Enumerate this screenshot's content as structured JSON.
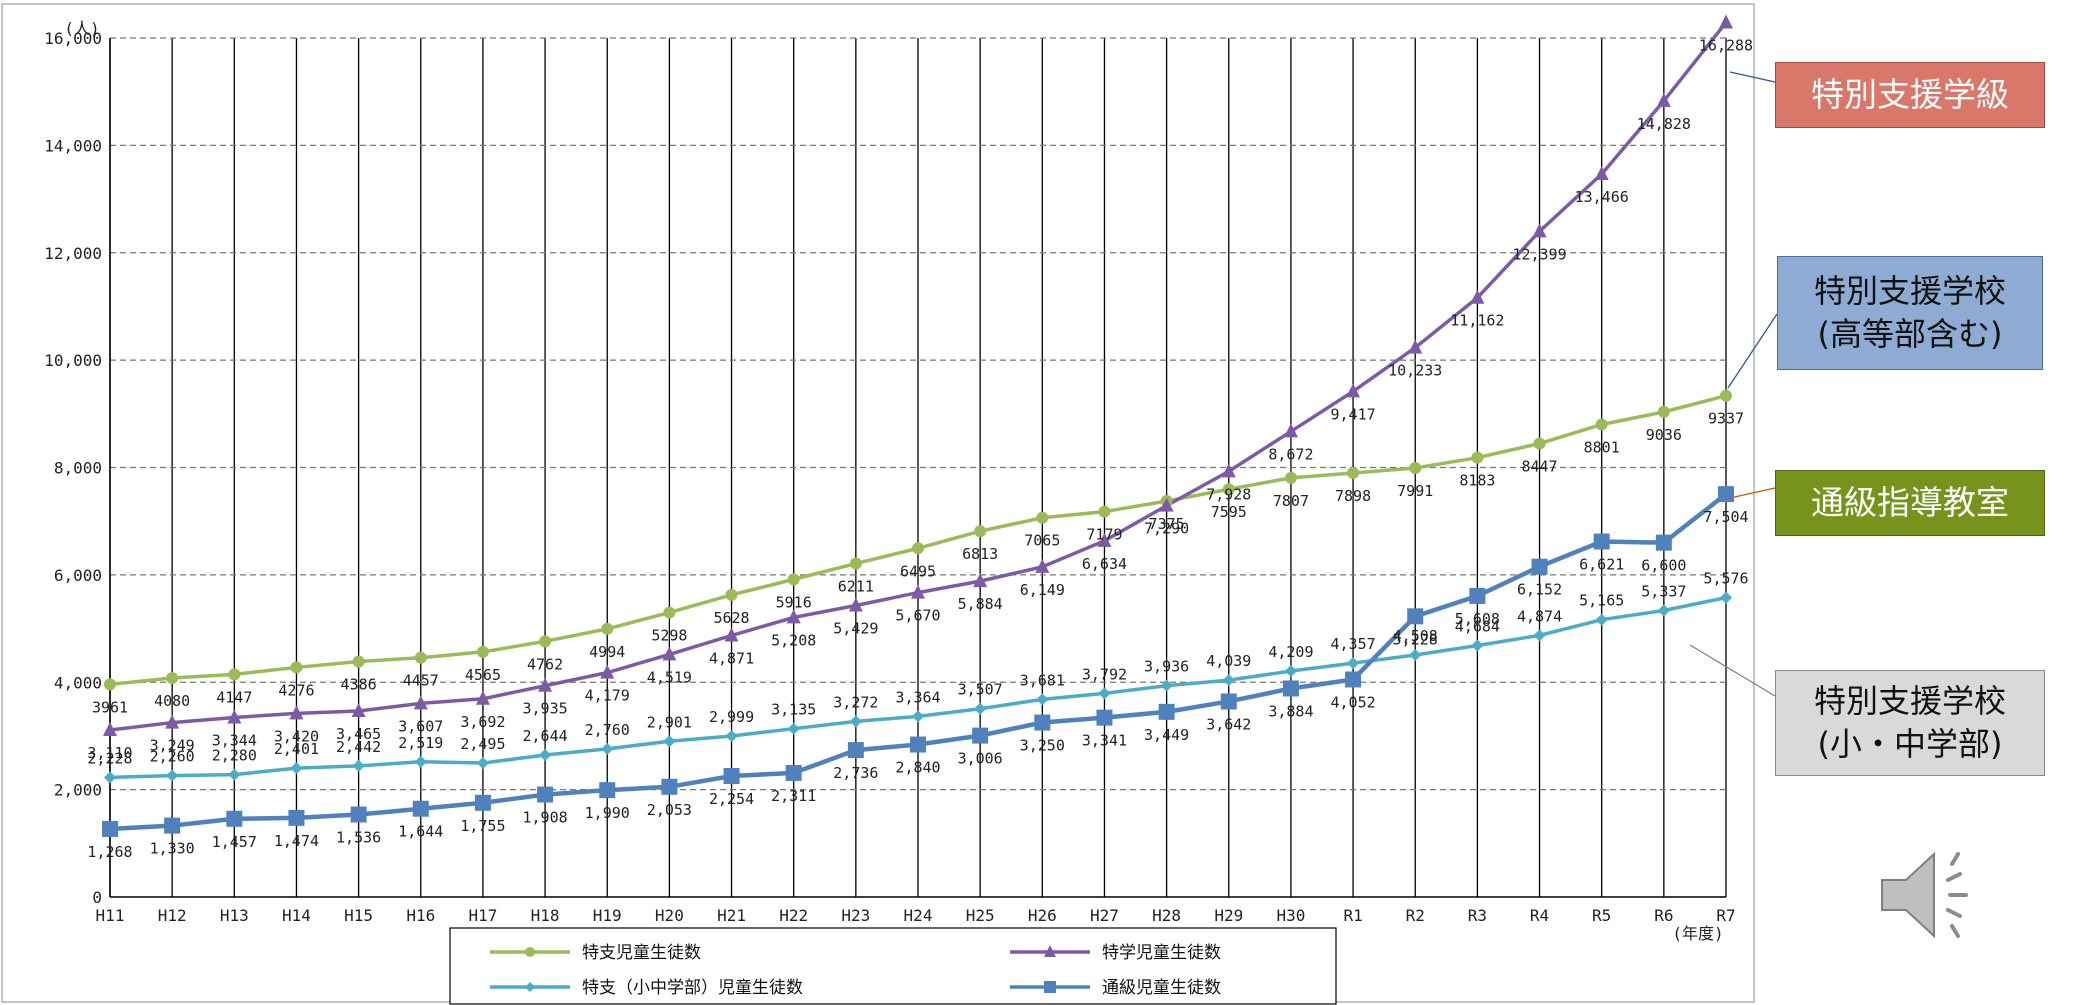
{
  "chart_data": {
    "type": "line",
    "y_unit": "(人)",
    "x_unit": "(年度)",
    "ylim": [
      0,
      16000
    ],
    "y_ticks": [
      "0",
      "2,000",
      "4,000",
      "6,000",
      "8,000",
      "10,000",
      "12,000",
      "14,000",
      "16,000"
    ],
    "categories": [
      "H11",
      "H12",
      "H13",
      "H14",
      "H15",
      "H16",
      "H17",
      "H18",
      "H19",
      "H20",
      "H21",
      "H22",
      "H23",
      "H24",
      "H25",
      "H26",
      "H27",
      "H28",
      "H29",
      "H30",
      "R1",
      "R2",
      "R3",
      "R4",
      "R5",
      "R6",
      "R7"
    ],
    "grid": true,
    "legend_position": "bottom",
    "series": [
      {
        "name": "特支児童生徒数",
        "color": "#9bbb59",
        "marker": "circle",
        "values": [
          3961,
          4080,
          4147,
          4276,
          4386,
          4457,
          4565,
          4762,
          4994,
          5298,
          5628,
          5916,
          6211,
          6495,
          6813,
          7065,
          7179,
          7375,
          7595,
          7807,
          7898,
          7991,
          8183,
          8447,
          8801,
          9036,
          9337
        ],
        "labels": [
          "3961",
          "4080",
          "4147",
          "4276",
          "4386",
          "4457",
          "4565",
          "4762",
          "4994",
          "5298",
          "5628",
          "5916",
          "6211",
          "6495",
          "6813",
          "7065",
          "7179",
          "7375",
          "7595",
          "7807",
          "7898",
          "7991",
          "8183",
          "8447",
          "8801",
          "9036",
          "9337"
        ]
      },
      {
        "name": "特学児童生徒数",
        "color": "#7e5aa6",
        "marker": "triangle",
        "values": [
          3110,
          3249,
          3344,
          3420,
          3465,
          3607,
          3692,
          3935,
          4179,
          4519,
          4871,
          5208,
          5429,
          5670,
          5884,
          6149,
          6634,
          7290,
          7928,
          8672,
          9417,
          10233,
          11162,
          12399,
          13466,
          14828,
          16288
        ],
        "labels": [
          "3,110",
          "3,249",
          "3,344",
          "3,420",
          "3,465",
          "3,607",
          "3,692",
          "3,935",
          "4,179",
          "4,519",
          "4,871",
          "5,208",
          "5,429",
          "5,670",
          "5,884",
          "6,149",
          "6,634",
          "7,290",
          "7,928",
          "8,672",
          "9,417",
          "10,233",
          "11,162",
          "12,399",
          "13,466",
          "14,828",
          "16,288"
        ]
      },
      {
        "name": "特支（小中学部）児童生徒数",
        "color": "#4bacc6",
        "marker": "diamond",
        "values": [
          2228,
          2260,
          2280,
          2401,
          2442,
          2519,
          2495,
          2644,
          2760,
          2901,
          2999,
          3135,
          3272,
          3364,
          3507,
          3681,
          3792,
          3936,
          4039,
          4209,
          4357,
          4508,
          4684,
          4874,
          5165,
          5337,
          5576
        ],
        "labels": [
          "2,228",
          "2,260",
          "2,280",
          "2,401",
          "2,442",
          "2,519",
          "2,495",
          "2,644",
          "2,760",
          "2,901",
          "2,999",
          "3,135",
          "3,272",
          "3,364",
          "3,507",
          "3,681",
          "3,792",
          "3,936",
          "4,039",
          "4,209",
          "4,357",
          "4,508",
          "4,684",
          "4,874",
          "5,165",
          "5,337",
          "5,576"
        ]
      },
      {
        "name": "通級児童生徒数",
        "color": "#4f81bd",
        "marker": "square",
        "values": [
          1268,
          1330,
          1457,
          1474,
          1536,
          1644,
          1755,
          1908,
          1990,
          2053,
          2254,
          2311,
          2736,
          2840,
          3006,
          3250,
          3341,
          3449,
          3642,
          3884,
          4052,
          5228,
          5608,
          6152,
          6621,
          6600,
          7504
        ],
        "labels": [
          "1,268",
          "1,330",
          "1,457",
          "1,474",
          "1,536",
          "1,644",
          "1,755",
          "1,908",
          "1,990",
          "2,053",
          "2,254",
          "2,311",
          "2,736",
          "2,840",
          "3,006",
          "3,250",
          "3,341",
          "3,449",
          "3,642",
          "3,884",
          "4,052",
          "5,228",
          "5,608",
          "6,152",
          "6,621",
          "6,600",
          "7,504"
        ]
      }
    ]
  },
  "annotations": [
    {
      "text": "特別支援学級",
      "color": "#d9776b"
    },
    {
      "text": "特別支援学校\n(高等部含む)",
      "color": "#8eacd3"
    },
    {
      "text": "通級指導教室",
      "color": "#77931c"
    },
    {
      "text": "特別支援学校\n(小・中学部)",
      "color": "#d9d9d9"
    }
  ],
  "speaker_icon": "speaker-icon"
}
